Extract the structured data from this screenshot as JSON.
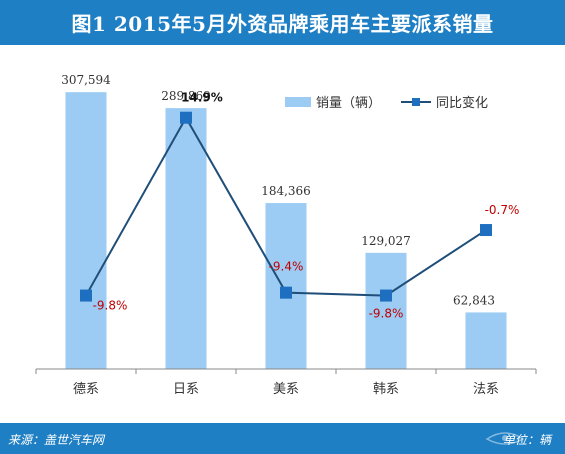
{
  "title": "图1  2015年5月外资品牌乘用车主要派系销量",
  "footer": {
    "source": "来源：盖世汽车网",
    "unit": "单位：辆",
    "watermark": "autogasgoo.com"
  },
  "colors": {
    "bar": "#9ccbf3",
    "line": "#1f4e79",
    "marker": "#1f6fc0",
    "header": "#1f7fc4",
    "pct_label": "#c00000"
  },
  "chart_data": {
    "type": "bar",
    "categories": [
      "德系",
      "日系",
      "美系",
      "韩系",
      "法系"
    ],
    "series": [
      {
        "name": "销量（辆）",
        "type": "bar",
        "values": [
          307594,
          289869,
          184366,
          129027,
          62843
        ],
        "labels": [
          "307,594",
          "289,869",
          "184,366",
          "129,027",
          "62,843"
        ]
      },
      {
        "name": "同比变化",
        "type": "line",
        "values": [
          -9.8,
          14.9,
          -9.4,
          -9.8,
          -0.7
        ],
        "labels": [
          "-9.8%",
          "14.9%",
          "-9.4%",
          "-9.8%",
          "-0.7%"
        ]
      }
    ],
    "ylim": [
      0,
      320000
    ],
    "y2lim": [
      -20,
      20
    ],
    "legend": "top-right",
    "grid": false
  }
}
